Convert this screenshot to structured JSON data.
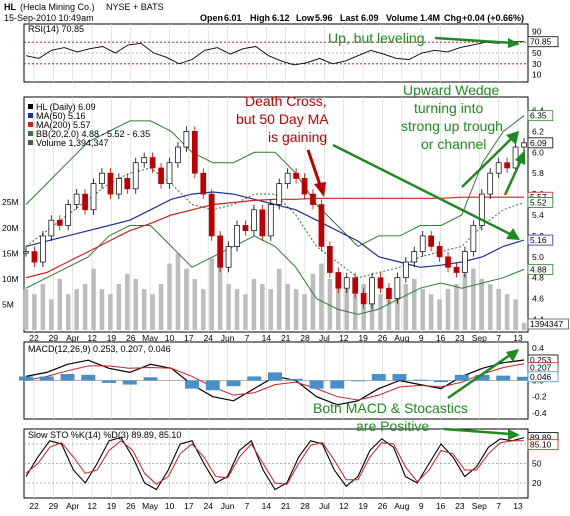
{
  "header": {
    "symbol": "HL",
    "company": "(Hecla Mining Co.)",
    "exchange": "NYSE + BATS",
    "date": "15-Sep-2010 10:49am",
    "open_label": "Open",
    "open": "6.01",
    "high_label": "High",
    "high": "6.12",
    "low_label": "Low",
    "low": "5.96",
    "last_label": "Last",
    "last": "6.09",
    "volume_label": "Volume",
    "volume": "1.4M",
    "chg_label": "Chg",
    "chg": "+0.04 (+0.66%)"
  },
  "rsi_panel": {
    "label": "RSI(14) 70.85",
    "ticks": [
      "90",
      "70",
      "50",
      "30",
      "10"
    ],
    "current": "70.85"
  },
  "price_panel": {
    "legend": [
      {
        "text": "HL (Daily) 6.09",
        "color": "#000000"
      },
      {
        "text": "MA(50) 5.16",
        "color": "#1f2f9c"
      },
      {
        "text": "MA(200) 5.57",
        "color": "#d02020"
      },
      {
        "text": "BB(20,2.0) 4.88 - 5.52 - 6.35",
        "color": "#2e7d32"
      },
      {
        "text": "Volume 1,394,347",
        "color": "#555555"
      }
    ],
    "price_ticks": [
      "6.4",
      "6.2",
      "6.0",
      "5.8",
      "5.6",
      "5.4",
      "5.2",
      "5.0",
      "4.8",
      "4.6",
      "4.4"
    ],
    "volume_ticks": [
      "25M",
      "20M",
      "15M",
      "10M",
      "5M"
    ],
    "value_tags": [
      {
        "text": "6.35",
        "color": "#2e7d32"
      },
      {
        "text": "6.09",
        "color": "#000000"
      },
      {
        "text": "5.57",
        "color": "#d02020"
      },
      {
        "text": "5.52",
        "color": "#2e7d32"
      },
      {
        "text": "5.16",
        "color": "#1f2f9c"
      },
      {
        "text": "4.88",
        "color": "#2e7d32"
      },
      {
        "text": "1394347",
        "color": "#555555"
      }
    ]
  },
  "macd_panel": {
    "label": "MACD(12,26,9) 0.253, 0.207, 0.046",
    "ticks": [
      "0.4",
      "0.2",
      "0.0",
      "-0.2",
      "-0.4"
    ],
    "tags": [
      "0.253",
      "0.207",
      "0.046"
    ]
  },
  "sto_panel": {
    "label": "Slow STO %K(14) %D(3) 89.89, 85.10",
    "ticks": [
      "80",
      "50",
      "20"
    ],
    "tags": [
      "89.89",
      "85.10"
    ]
  },
  "x_axis": {
    "labels": [
      "22",
      "29",
      "Apr",
      "12",
      "19",
      "26",
      "May",
      "10",
      "17",
      "24",
      "Jun",
      "7",
      "14",
      "21",
      "28",
      "Jul",
      "12",
      "19",
      "26",
      "Aug",
      "9",
      "16",
      "23",
      "Sep",
      "7",
      "13"
    ]
  },
  "annotations": {
    "rsi": "Up, but leveling",
    "death_cross": [
      "Death Cross,",
      "but 50 Day MA",
      "is gaining"
    ],
    "wedge": [
      "Upward Wedge",
      "turning into",
      "strong up trough",
      "or channel"
    ],
    "macd_sto": [
      "Both MACD & Stocastics",
      "are Positive"
    ]
  },
  "chart_data": {
    "type": "line",
    "title": "HL (Hecla Mining Co.) NYSE + BATS",
    "x_range": [
      "2010-03-22",
      "2010-09-15"
    ],
    "price": {
      "ylim": [
        4.3,
        6.5
      ],
      "close": [
        5.05,
        4.95,
        5.2,
        5.35,
        5.3,
        5.5,
        5.6,
        5.45,
        5.7,
        5.8,
        5.6,
        5.75,
        5.65,
        5.9,
        5.95,
        5.85,
        5.7,
        5.9,
        6.05,
        6.2,
        5.8,
        5.6,
        5.2,
        4.9,
        5.1,
        5.3,
        5.25,
        5.45,
        5.2,
        5.5,
        5.7,
        5.8,
        5.75,
        5.6,
        5.5,
        5.1,
        4.85,
        4.7,
        4.8,
        4.65,
        4.55,
        4.8,
        4.7,
        4.6,
        4.8,
        4.95,
        5.05,
        5.2,
        5.1,
        5.0,
        4.9,
        4.85,
        5.05,
        5.3,
        5.6,
        5.8,
        5.9,
        5.85,
        6.05,
        6.09
      ],
      "ma50": [
        5.1,
        5.15,
        5.2,
        5.25,
        5.3,
        5.35,
        5.45,
        5.55,
        5.6,
        5.62,
        5.6,
        5.55,
        5.5,
        5.45,
        5.35,
        5.25,
        5.15,
        5.0,
        4.95,
        4.9,
        4.92,
        4.95,
        5.0,
        5.1,
        5.16
      ],
      "ma200": [
        4.8,
        4.85,
        4.95,
        5.05,
        5.15,
        5.25,
        5.32,
        5.4,
        5.45,
        5.5,
        5.52,
        5.54,
        5.55,
        5.55,
        5.56,
        5.56,
        5.56,
        5.56,
        5.56,
        5.56,
        5.56,
        5.57,
        5.57,
        5.57,
        5.57
      ],
      "bb_upper": [
        5.5,
        5.7,
        5.9,
        6.1,
        6.2,
        6.3,
        6.3,
        6.2,
        6.0,
        5.9,
        5.9,
        6.0,
        6.0,
        5.8,
        5.5,
        5.3,
        5.1,
        5.2,
        5.2,
        5.3,
        5.3,
        5.4,
        5.9,
        6.2,
        6.35
      ],
      "bb_mid": [
        5.1,
        5.25,
        5.4,
        5.55,
        5.7,
        5.8,
        5.85,
        5.7,
        5.5,
        5.45,
        5.5,
        5.6,
        5.6,
        5.4,
        5.1,
        4.95,
        4.8,
        4.85,
        4.9,
        5.0,
        5.05,
        5.1,
        5.3,
        5.45,
        5.52
      ],
      "bb_lower": [
        4.7,
        4.8,
        4.9,
        5.0,
        5.2,
        5.3,
        5.3,
        5.1,
        4.9,
        5.0,
        5.1,
        5.2,
        5.1,
        4.9,
        4.6,
        4.5,
        4.45,
        4.5,
        4.6,
        4.7,
        4.75,
        4.7,
        4.75,
        4.8,
        4.88
      ],
      "volume_millions": [
        8,
        7,
        9,
        6,
        10,
        7,
        8,
        9,
        12,
        8,
        7,
        9,
        11,
        10,
        8,
        7,
        9,
        13,
        15,
        12,
        10,
        8,
        14,
        18,
        9,
        8,
        7,
        10,
        9,
        8,
        12,
        9,
        8,
        7,
        11,
        13,
        10,
        9,
        8,
        7,
        9,
        8,
        7,
        6,
        8,
        9,
        10,
        8,
        7,
        6,
        8,
        9,
        11,
        12,
        10,
        9,
        8,
        7,
        6,
        1.4
      ]
    },
    "rsi": {
      "ylim": [
        0,
        100
      ],
      "values": [
        45,
        40,
        55,
        60,
        52,
        58,
        62,
        50,
        65,
        68,
        50,
        42,
        30,
        38,
        55,
        60,
        48,
        58,
        62,
        45,
        35,
        28,
        32,
        40,
        30,
        35,
        45,
        55,
        48,
        40,
        38,
        50,
        55,
        52,
        60,
        65,
        70,
        68,
        71,
        70.85
      ]
    },
    "macd": {
      "ylim": [
        -0.45,
        0.45
      ],
      "macd": [
        0.05,
        0.1,
        0.2,
        0.25,
        0.15,
        0.1,
        0.2,
        0.15,
        -0.05,
        -0.2,
        -0.25,
        -0.1,
        0.05,
        0.0,
        -0.2,
        -0.3,
        -0.25,
        -0.1,
        0.0,
        -0.05,
        -0.1,
        0.05,
        0.15,
        0.22,
        0.253
      ],
      "signal": [
        0.0,
        0.05,
        0.12,
        0.18,
        0.18,
        0.15,
        0.16,
        0.15,
        0.05,
        -0.08,
        -0.18,
        -0.15,
        -0.05,
        -0.02,
        -0.1,
        -0.2,
        -0.24,
        -0.18,
        -0.08,
        -0.06,
        -0.08,
        -0.02,
        0.08,
        0.16,
        0.207
      ],
      "hist": [
        0.05,
        0.05,
        0.08,
        0.07,
        -0.03,
        -0.05,
        0.04,
        0.0,
        -0.1,
        -0.12,
        -0.07,
        0.05,
        0.1,
        0.02,
        -0.1,
        -0.1,
        -0.01,
        0.08,
        0.08,
        0.01,
        -0.02,
        0.07,
        0.07,
        0.06,
        0.046
      ]
    },
    "stochastic": {
      "ylim": [
        0,
        100
      ],
      "k": [
        30,
        60,
        85,
        80,
        40,
        20,
        50,
        85,
        90,
        60,
        20,
        10,
        40,
        80,
        85,
        50,
        20,
        30,
        70,
        85,
        40,
        10,
        20,
        60,
        85,
        80,
        40,
        15,
        30,
        70,
        88,
        75,
        30,
        20,
        50,
        80,
        60,
        30,
        45,
        75,
        88,
        85,
        89.89
      ],
      "d": [
        35,
        50,
        75,
        82,
        60,
        35,
        40,
        70,
        85,
        70,
        35,
        18,
        30,
        65,
        80,
        60,
        30,
        28,
        60,
        80,
        50,
        20,
        18,
        50,
        78,
        82,
        55,
        25,
        25,
        60,
        82,
        80,
        45,
        22,
        40,
        70,
        65,
        40,
        40,
        65,
        82,
        85,
        85.1
      ]
    }
  }
}
